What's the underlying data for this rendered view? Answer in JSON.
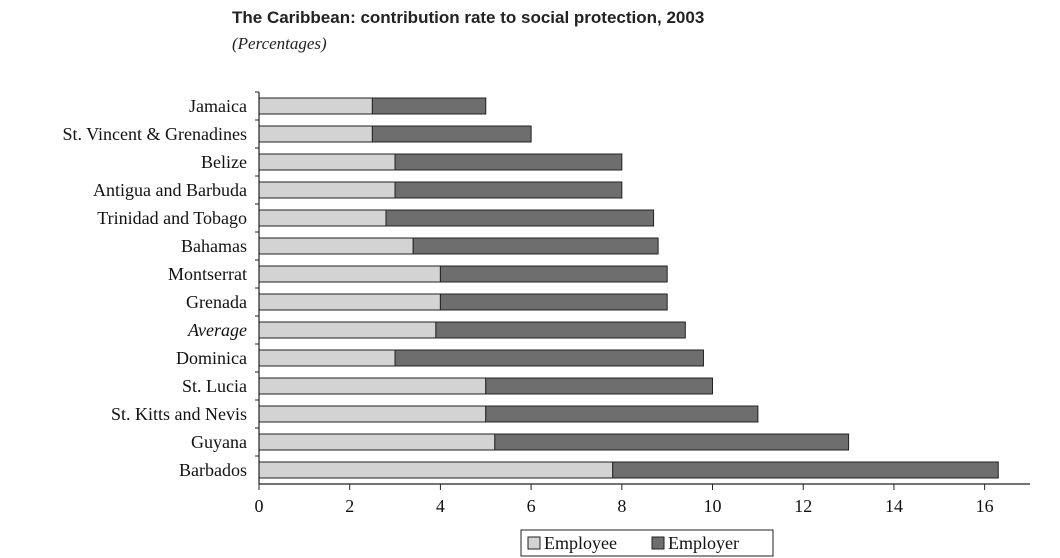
{
  "chart_data": {
    "type": "bar",
    "orientation": "horizontal",
    "stacked": true,
    "title": "The Caribbean: contribution rate to social protection, 2003",
    "subtitle": "(Percentages)",
    "categories": [
      "Jamaica",
      "St. Vincent & Grenadines",
      "Belize",
      "Antigua and Barbuda",
      "Trinidad and Tobago",
      "Bahamas",
      "Montserrat",
      "Grenada",
      "Average",
      "Dominica",
      "St. Lucia",
      "St. Kitts and Nevis",
      "Guyana",
      "Barbados"
    ],
    "italic_categories": [
      "Average"
    ],
    "series": [
      {
        "name": "Employee",
        "color": "#d3d3d3",
        "values": [
          2.5,
          2.5,
          3.0,
          3.0,
          2.8,
          3.4,
          4.0,
          4.0,
          3.9,
          3.0,
          5.0,
          5.0,
          5.2,
          7.8
        ]
      },
      {
        "name": "Employer",
        "color": "#6e6e6e",
        "values": [
          2.5,
          3.5,
          5.0,
          5.0,
          5.9,
          5.4,
          5.0,
          5.0,
          5.5,
          6.8,
          5.0,
          6.0,
          7.8,
          8.5
        ]
      }
    ],
    "xlim": [
      0,
      17
    ],
    "xticks": [
      0,
      2,
      4,
      6,
      8,
      10,
      12,
      14,
      16
    ],
    "grid": false,
    "legend_position": "bottom"
  }
}
